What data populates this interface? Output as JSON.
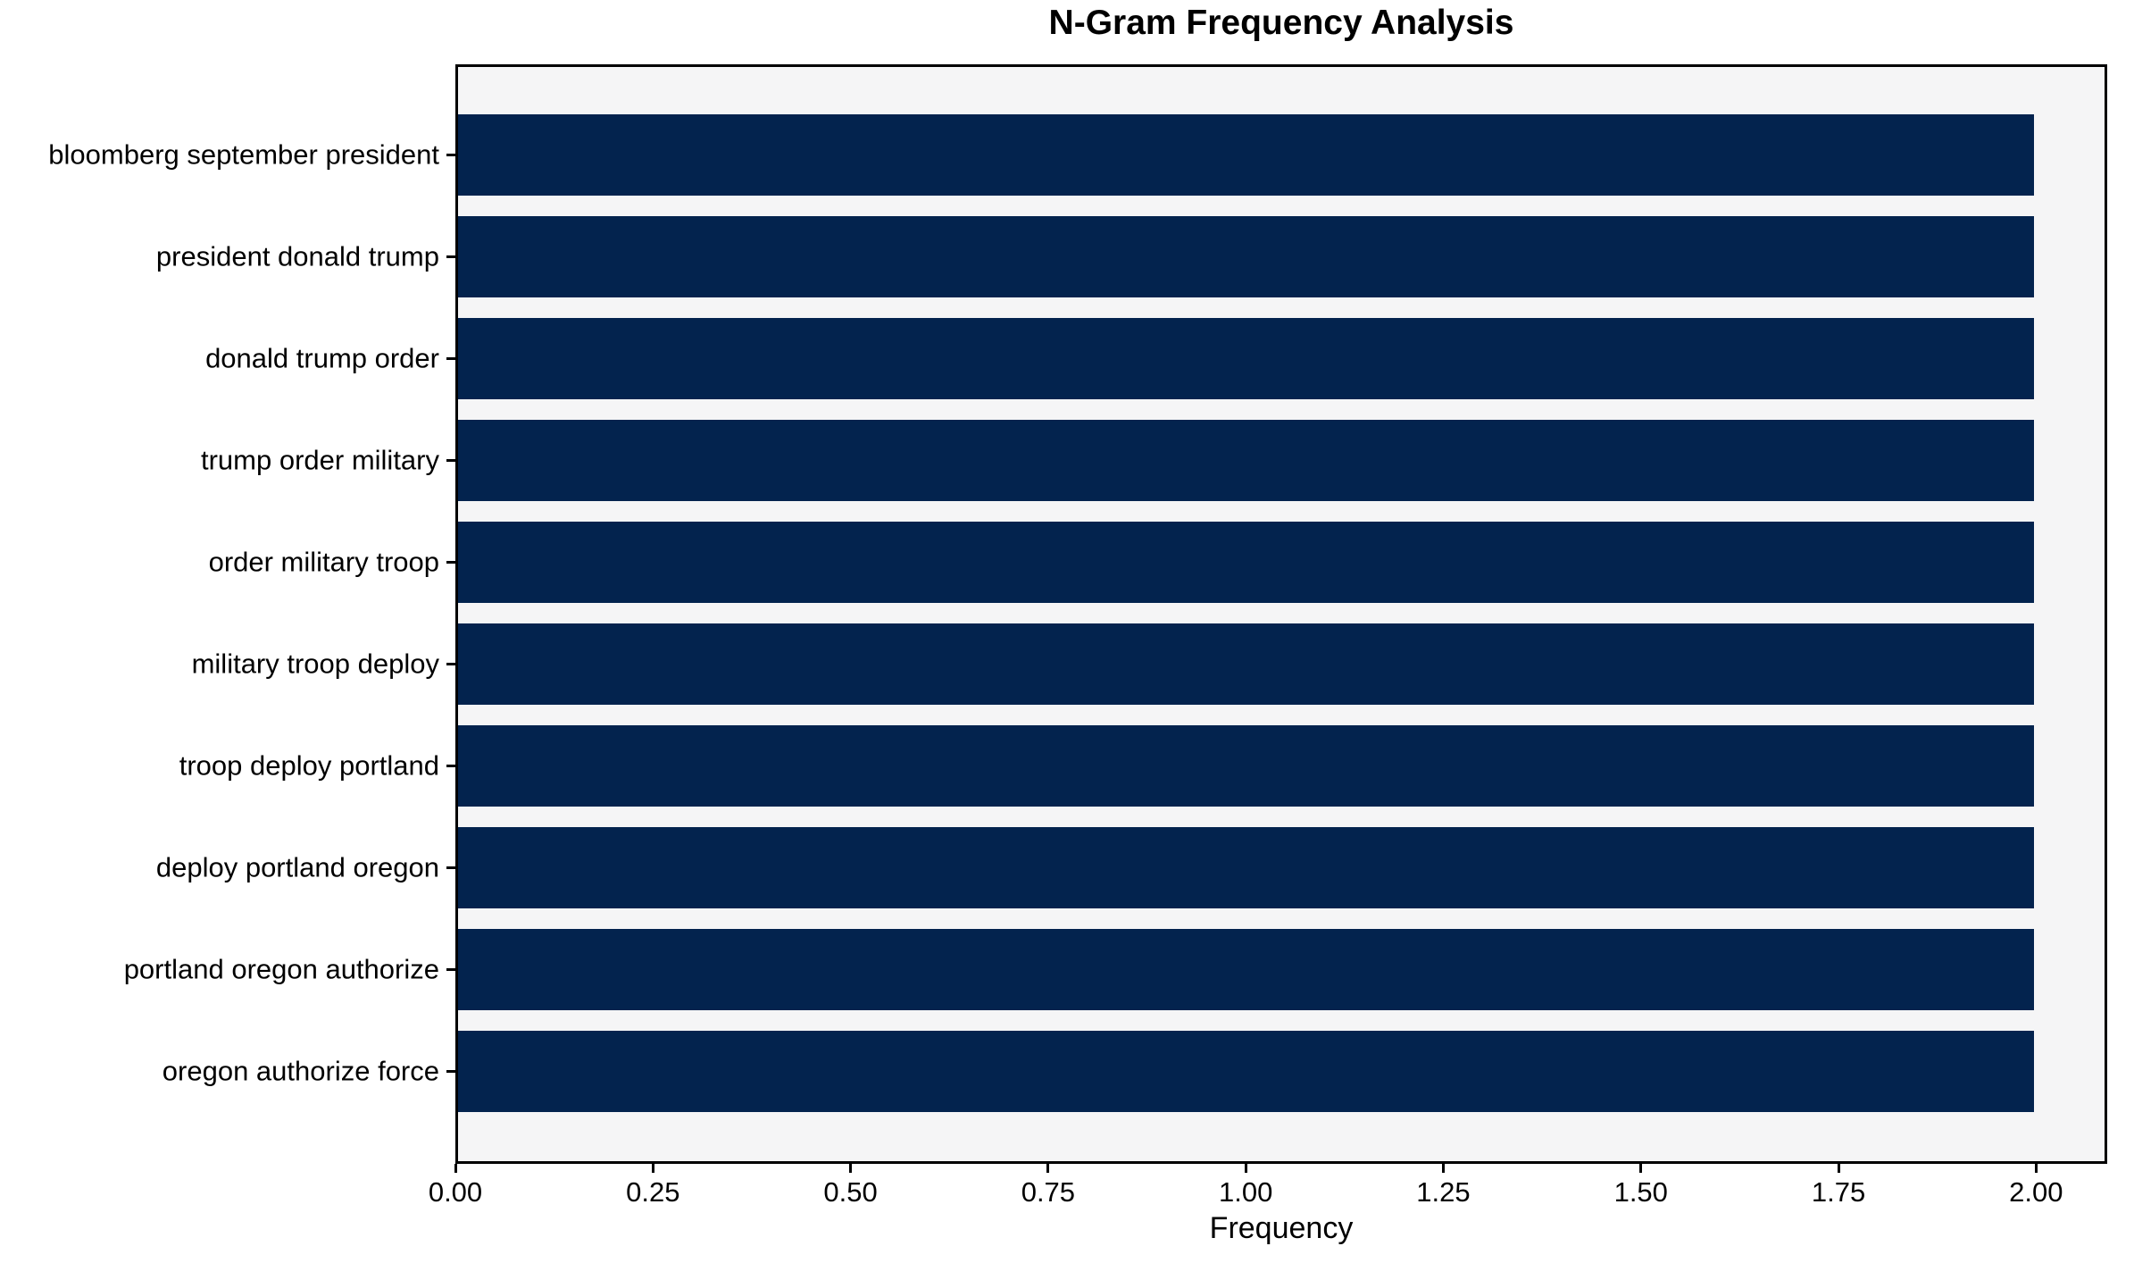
{
  "chart_data": {
    "type": "bar",
    "orientation": "horizontal",
    "title": "N-Gram Frequency Analysis",
    "xlabel": "Frequency",
    "ylabel": "",
    "categories": [
      "bloomberg september president",
      "president donald trump",
      "donald trump order",
      "trump order military",
      "order military troop",
      "military troop deploy",
      "troop deploy portland",
      "deploy portland oregon",
      "portland oregon authorize",
      "oregon authorize force"
    ],
    "values": [
      2,
      2,
      2,
      2,
      2,
      2,
      2,
      2,
      2,
      2
    ],
    "xlim": [
      0,
      2.09
    ],
    "xtick_labels": [
      "0.00",
      "0.25",
      "0.50",
      "0.75",
      "1.00",
      "1.25",
      "1.50",
      "1.75",
      "2.00"
    ],
    "xtick_values": [
      0,
      0.25,
      0.5,
      0.75,
      1.0,
      1.25,
      1.5,
      1.75,
      2.0
    ],
    "grid": false,
    "legend": false,
    "colors": {
      "bar": "#03234e",
      "plot_background": "#f5f5f6",
      "figure_background": "#ffffff",
      "axis": "#000000",
      "text": "#000000"
    }
  }
}
